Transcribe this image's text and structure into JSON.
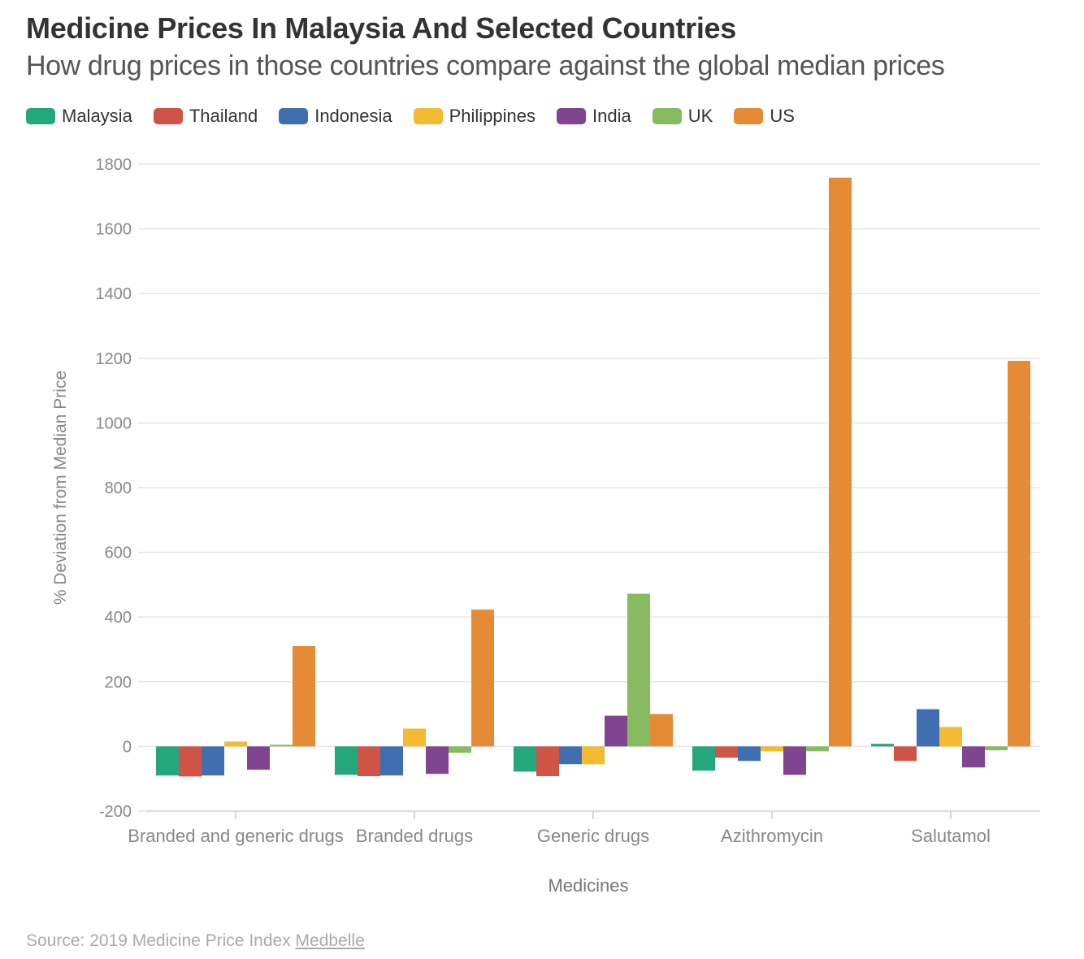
{
  "header": {
    "title": "Medicine Prices In Malaysia And Selected Countries",
    "subtitle": "How drug prices in those countries compare against the global median prices"
  },
  "footer": {
    "source_prefix": "Source: 2019 Medicine Price Index ",
    "source_link": "Medbelle"
  },
  "chart_data": {
    "type": "bar",
    "xlabel": "Medicines",
    "ylabel": "% Deviation from Median Price",
    "ylim": [
      -200,
      1800
    ],
    "yticks": [
      -200,
      0,
      200,
      400,
      600,
      800,
      1000,
      1200,
      1400,
      1600,
      1800
    ],
    "grid": true,
    "legend_position": "top-left",
    "categories": [
      "Branded and generic drugs",
      "Branded drugs",
      "Generic drugs",
      "Azithromycin",
      "Salutamol"
    ],
    "series": [
      {
        "name": "Malaysia",
        "color": "#23a77b",
        "values": [
          -90,
          -88,
          -78,
          -75,
          8
        ]
      },
      {
        "name": "Thailand",
        "color": "#cf5447",
        "values": [
          -93,
          -92,
          -92,
          -35,
          -45
        ]
      },
      {
        "name": "Indonesia",
        "color": "#3f6fb0",
        "values": [
          -90,
          -90,
          -55,
          -45,
          115
        ]
      },
      {
        "name": "Philippines",
        "color": "#f2bb32",
        "values": [
          15,
          55,
          -55,
          -15,
          60
        ]
      },
      {
        "name": "India",
        "color": "#80458f",
        "values": [
          -72,
          -85,
          95,
          -88,
          -65
        ]
      },
      {
        "name": "UK",
        "color": "#86bb5f",
        "values": [
          5,
          -20,
          472,
          -15,
          -12
        ]
      },
      {
        "name": "US",
        "color": "#e68b35",
        "values": [
          310,
          423,
          100,
          1758,
          1192
        ]
      }
    ]
  }
}
